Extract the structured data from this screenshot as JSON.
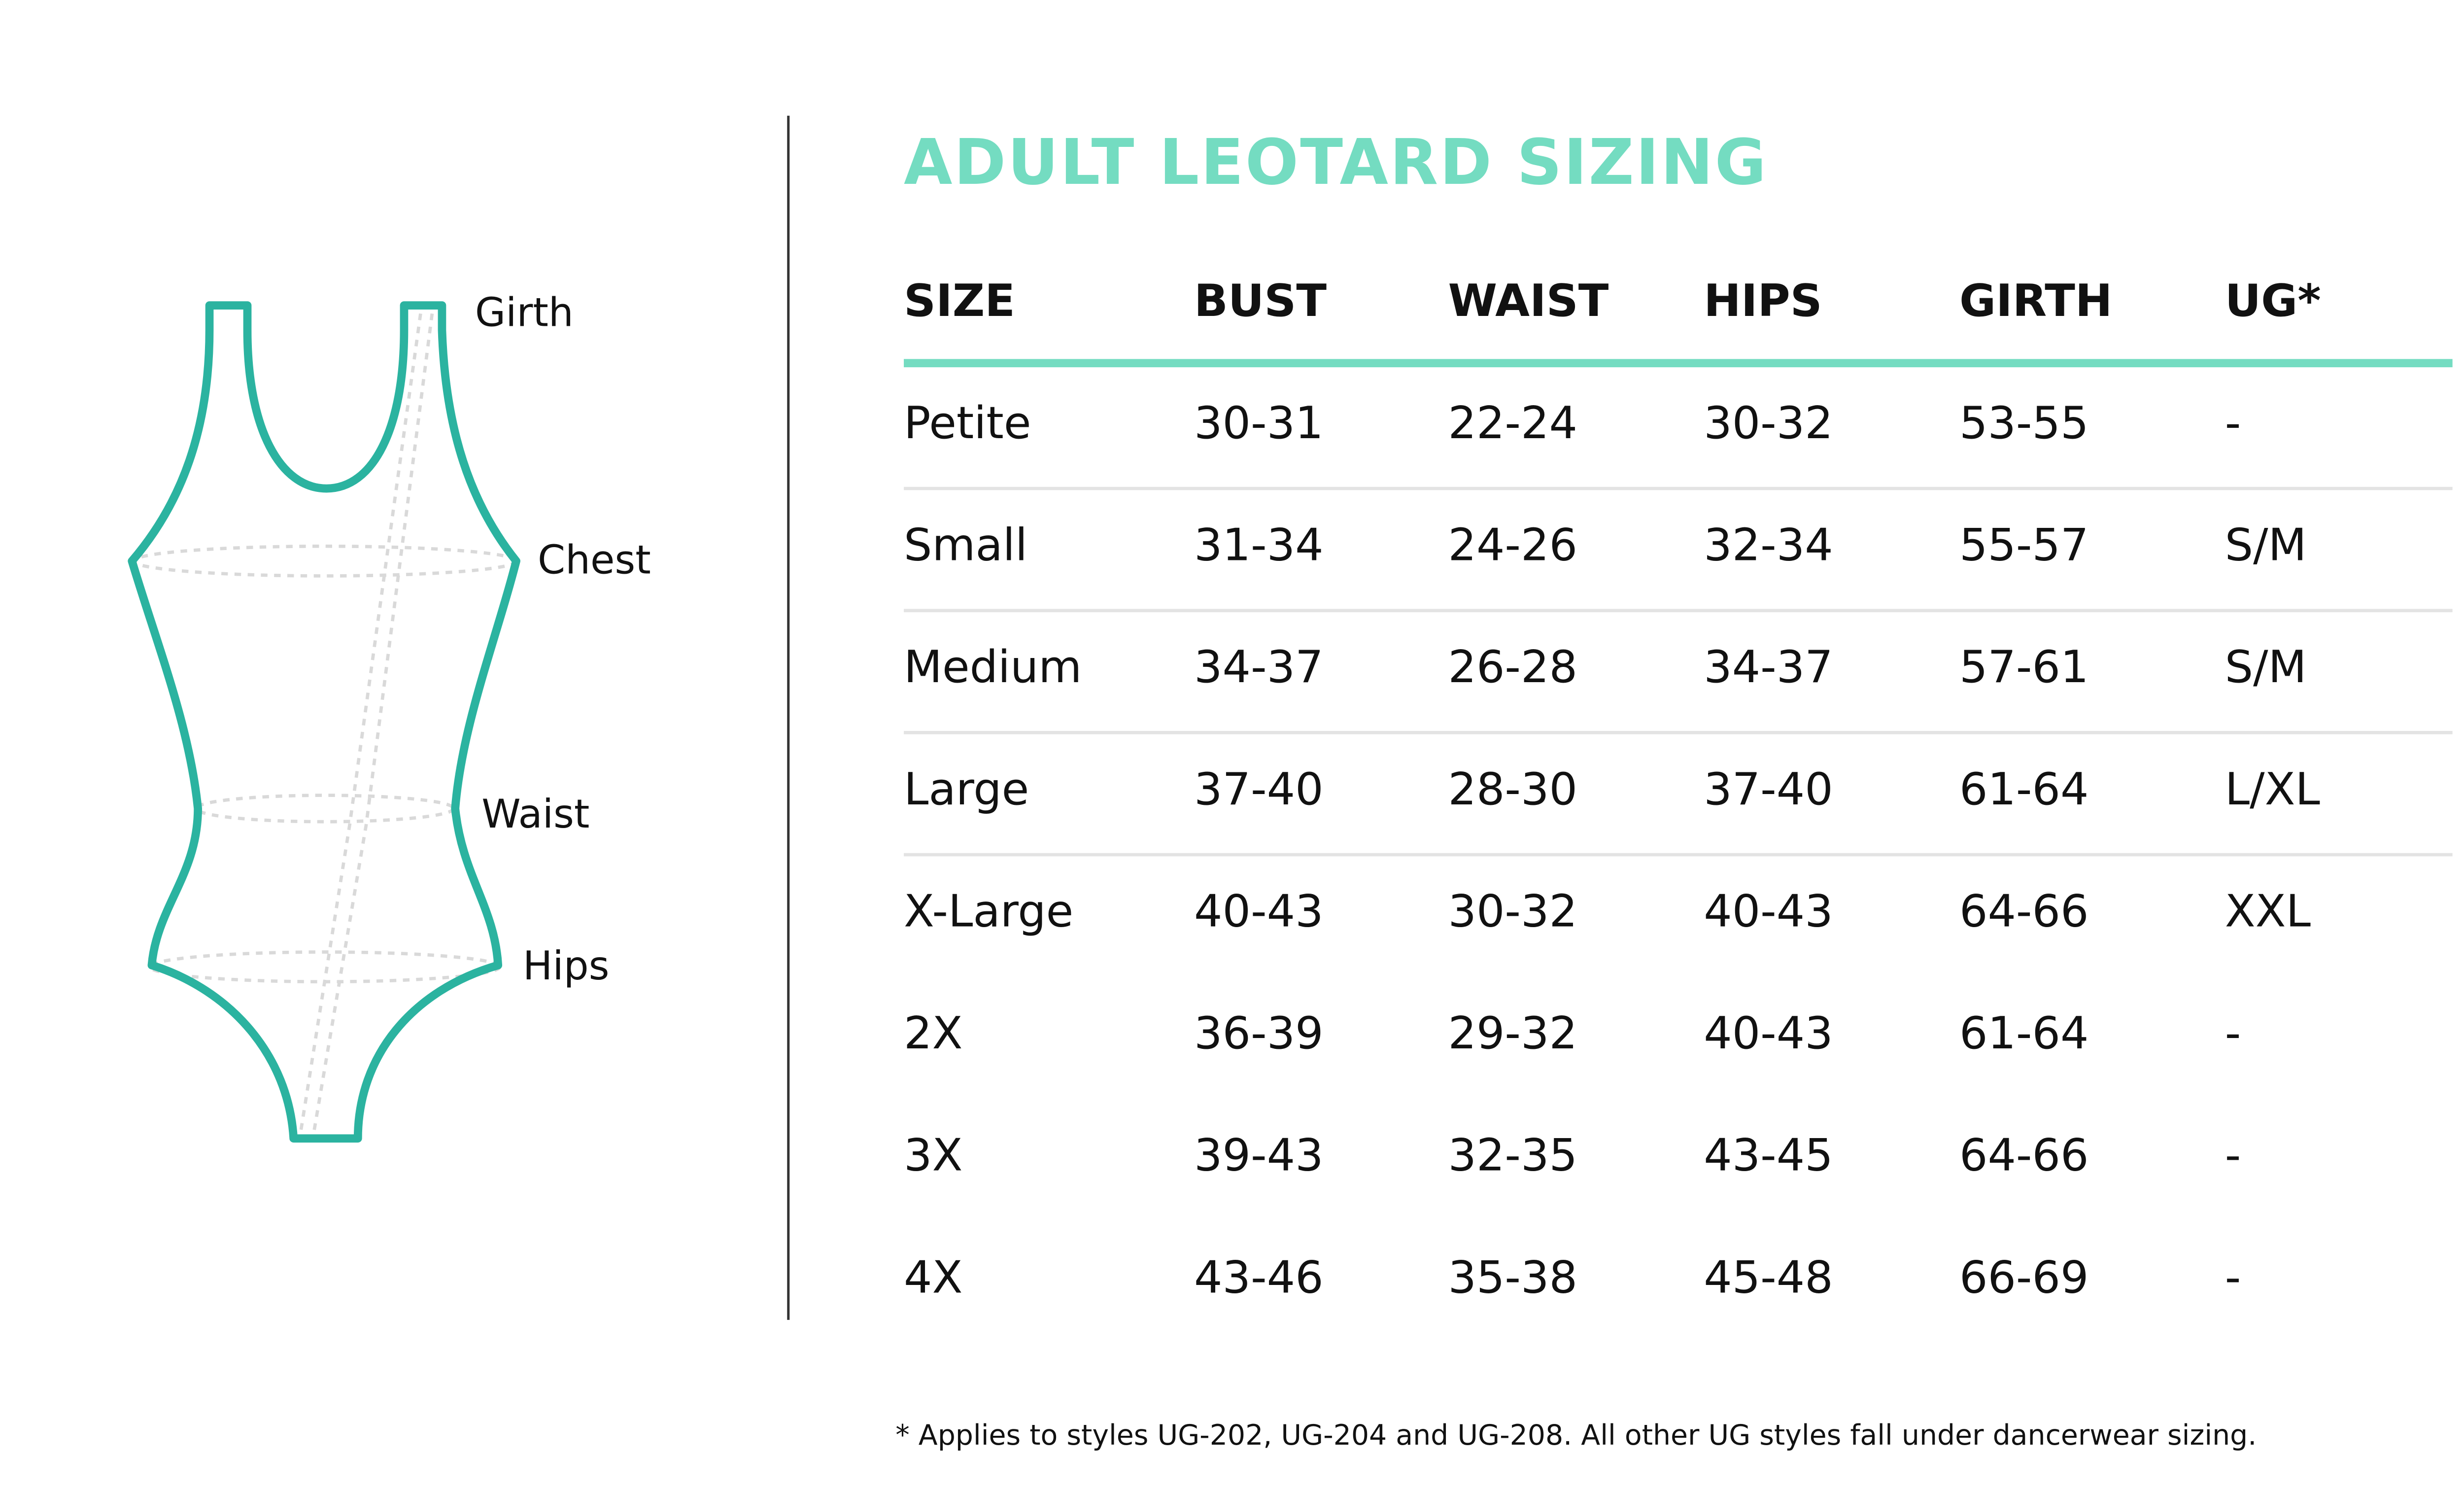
{
  "title": "ADULT LEOTARD SIZING",
  "diagram": {
    "labels": [
      "Girth",
      "Chest",
      "Waist",
      "Hips"
    ]
  },
  "table": {
    "headers": [
      "SIZE",
      "BUST",
      "WAIST",
      "HIPS",
      "GIRTH",
      "UG*"
    ],
    "rows": [
      [
        "Petite",
        "30-31",
        "22-24",
        "30-32",
        "53-55",
        "-"
      ],
      [
        "Small",
        "31-34",
        "24-26",
        "32-34",
        "55-57",
        "S/M"
      ],
      [
        "Medium",
        "34-37",
        "26-28",
        "34-37",
        "57-61",
        "S/M"
      ],
      [
        "Large",
        "37-40",
        "28-30",
        "37-40",
        "61-64",
        "L/XL"
      ],
      [
        "X-Large",
        "40-43",
        "30-32",
        "40-43",
        "64-66",
        "XXL"
      ],
      [
        "2X",
        "36-39",
        "29-32",
        "40-43",
        "61-64",
        "-"
      ],
      [
        "3X",
        "39-43",
        "32-35",
        "43-45",
        "64-66",
        "-"
      ],
      [
        "4X",
        "43-46",
        "35-38",
        "45-48",
        "66-69",
        "-"
      ]
    ]
  },
  "footnote": "* Applies to styles UG-202, UG-204 and UG-208. All other UG styles fall under dancerwear sizing."
}
